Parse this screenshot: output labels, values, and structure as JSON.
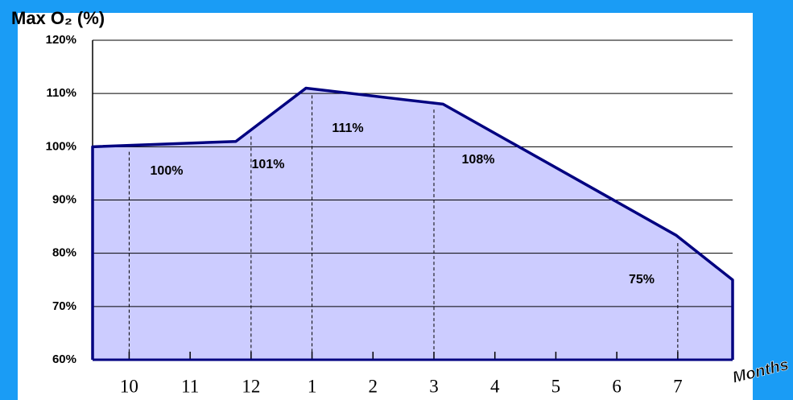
{
  "chart_data": {
    "type": "area",
    "title": "Max O₂ (%)",
    "x_label": "Months",
    "x": [
      -0.6,
      1.75,
      2.9,
      5.15,
      8.97,
      9.9
    ],
    "series": [
      {
        "name": "Max O₂",
        "color": "#000080",
        "fill": "#ccccff",
        "values": [
          100,
          101,
          111,
          108,
          83.4,
          75
        ]
      }
    ],
    "data_labels": {
      "values": [
        100,
        101,
        111,
        108,
        75
      ],
      "value_labels": [
        "100%",
        "101%",
        "111%",
        "108%",
        "75%"
      ]
    },
    "xlim": [
      -0.6,
      9.9
    ],
    "xticks": [
      {
        "value": 0,
        "label": "10"
      },
      {
        "value": 1,
        "label": "11"
      },
      {
        "value": 2,
        "label": "12"
      },
      {
        "value": 3,
        "label": "1"
      },
      {
        "value": 4,
        "label": "2"
      },
      {
        "value": 5,
        "label": "3"
      },
      {
        "value": 6,
        "label": "4"
      },
      {
        "value": 7,
        "label": "5"
      },
      {
        "value": 8,
        "label": "6"
      },
      {
        "value": 9,
        "label": "7"
      }
    ],
    "ylim": [
      60,
      120
    ],
    "yticks": [
      {
        "value": 60,
        "label": "60%"
      },
      {
        "value": 70,
        "label": "70%"
      },
      {
        "value": 80,
        "label": "80%"
      },
      {
        "value": 90,
        "label": "90%"
      },
      {
        "value": 100,
        "label": "100%"
      },
      {
        "value": 110,
        "label": "110%"
      },
      {
        "value": 120,
        "label": "120%"
      }
    ],
    "grid": true
  }
}
